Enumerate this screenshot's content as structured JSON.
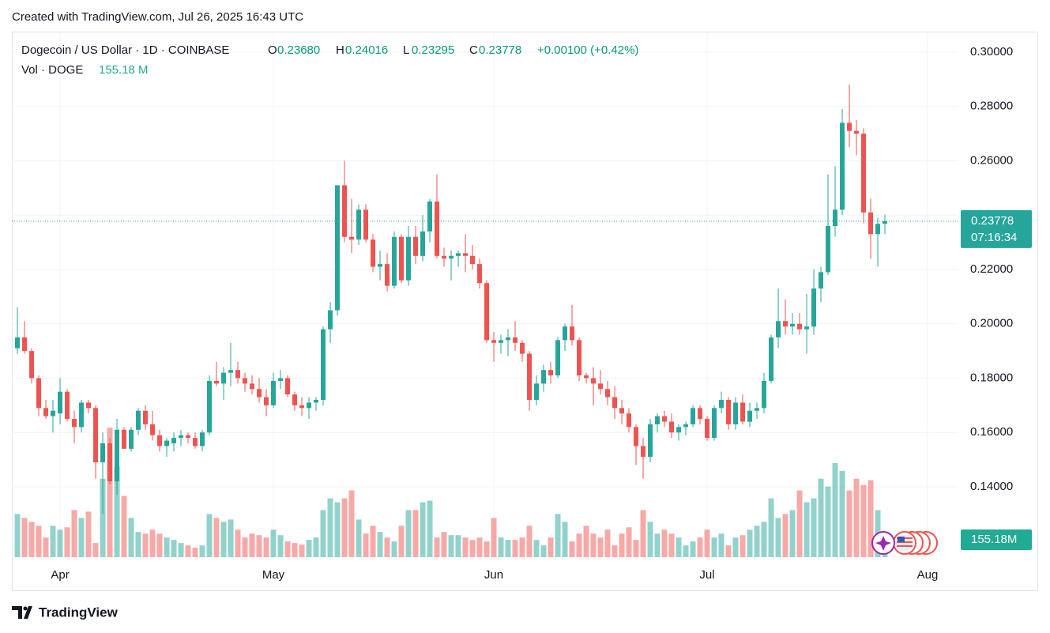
{
  "header": {
    "credit": "Created with TradingView.com, Jul 26, 2025 16:43 UTC"
  },
  "footer": {
    "brand": "TradingView"
  },
  "chart_data": {
    "type": "candlestick",
    "title": "Dogecoin / US Dollar · 1D · COINBASE",
    "ohlc_legend": [
      {
        "key": "O",
        "value": "0.23680"
      },
      {
        "key": "H",
        "value": "0.24016"
      },
      {
        "key": "L",
        "value": "0.23295"
      },
      {
        "key": "C",
        "value": "0.23778"
      }
    ],
    "change": "+0.00100 (+0.42%)",
    "volume_legend": {
      "name": "Vol · DOGE",
      "value": "155.18 M"
    },
    "price_tag": {
      "price": "0.23778",
      "countdown": "07:16:34"
    },
    "volume_tag": "155.18M",
    "up_color": "#26a69a",
    "down_color": "#ef5350",
    "grid": true,
    "xlim": [
      -0.78,
      132.33
    ],
    "xticks": [
      {
        "value": 6,
        "label": "Apr"
      },
      {
        "value": 36,
        "label": "May"
      },
      {
        "value": 67,
        "label": "Jun"
      },
      {
        "value": 97,
        "label": "Jul"
      },
      {
        "value": 128,
        "label": "Aug"
      }
    ],
    "ylim": [
      0.11411,
      0.30756
    ],
    "yticks": [
      {
        "value": 0.14,
        "label": "0.14000"
      },
      {
        "value": 0.16,
        "label": "0.16000"
      },
      {
        "value": 0.18,
        "label": "0.18000"
      },
      {
        "value": 0.2,
        "label": "0.20000"
      },
      {
        "value": 0.22,
        "label": "0.22000"
      },
      {
        "value": 0.24,
        "label": "0.24000"
      },
      {
        "value": 0.26,
        "label": "0.26000"
      },
      {
        "value": 0.28,
        "label": "0.28000"
      },
      {
        "value": 0.3,
        "label": "0.30000"
      }
    ],
    "open": [
      0.191,
      0.195,
      0.19,
      0.18,
      0.169,
      0.166,
      0.167,
      0.175,
      0.165,
      0.162,
      0.171,
      0.169,
      0.149,
      0.156,
      0.142,
      0.161,
      0.154,
      0.161,
      0.168,
      0.163,
      0.159,
      0.155,
      0.156,
      0.158,
      0.159,
      0.158,
      0.155,
      0.16,
      0.179,
      0.178,
      0.182,
      0.183,
      0.18,
      0.178,
      0.176,
      0.173,
      0.17,
      0.179,
      0.18,
      0.174,
      0.17,
      0.169,
      0.171,
      0.172,
      0.198,
      0.205,
      0.251,
      0.232,
      0.231,
      0.242,
      0.231,
      0.221,
      0.222,
      0.214,
      0.232,
      0.216,
      0.232,
      0.225,
      0.234,
      0.245,
      0.225,
      0.224,
      0.225,
      0.226,
      0.225,
      0.222,
      0.215,
      0.194,
      0.193,
      0.194,
      0.195,
      0.193,
      0.189,
      0.172,
      0.178,
      0.183,
      0.181,
      0.194,
      0.199,
      0.194,
      0.181,
      0.18,
      0.178,
      0.176,
      0.173,
      0.169,
      0.167,
      0.162,
      0.155,
      0.151,
      0.163,
      0.166,
      0.164,
      0.16,
      0.162,
      0.163,
      0.169,
      0.165,
      0.158,
      0.169,
      0.172,
      0.163,
      0.171,
      0.164,
      0.168,
      0.169,
      0.179,
      0.195,
      0.201,
      0.199,
      0.2,
      0.198,
      0.199,
      0.213,
      0.219,
      0.236,
      0.242,
      0.274,
      0.271,
      0.27,
      0.241,
      0.233,
      0.2368
    ],
    "high": [
      0.206,
      0.201,
      0.191,
      0.181,
      0.172,
      0.172,
      0.18,
      0.176,
      0.168,
      0.172,
      0.172,
      0.17,
      0.16,
      0.158,
      0.165,
      0.162,
      0.162,
      0.169,
      0.17,
      0.168,
      0.161,
      0.158,
      0.16,
      0.161,
      0.16,
      0.16,
      0.161,
      0.181,
      0.186,
      0.184,
      0.193,
      0.186,
      0.182,
      0.181,
      0.18,
      0.176,
      0.182,
      0.183,
      0.181,
      0.175,
      0.173,
      0.173,
      0.173,
      0.199,
      0.208,
      0.251,
      0.26,
      0.246,
      0.244,
      0.244,
      0.233,
      0.227,
      0.226,
      0.234,
      0.233,
      0.236,
      0.236,
      0.24,
      0.246,
      0.255,
      0.228,
      0.227,
      0.227,
      0.233,
      0.229,
      0.224,
      0.216,
      0.197,
      0.196,
      0.198,
      0.201,
      0.194,
      0.19,
      0.181,
      0.185,
      0.186,
      0.195,
      0.2,
      0.207,
      0.195,
      0.182,
      0.184,
      0.183,
      0.179,
      0.177,
      0.172,
      0.169,
      0.163,
      0.158,
      0.165,
      0.167,
      0.168,
      0.167,
      0.163,
      0.164,
      0.17,
      0.17,
      0.166,
      0.17,
      0.175,
      0.173,
      0.173,
      0.174,
      0.171,
      0.171,
      0.182,
      0.196,
      0.213,
      0.209,
      0.204,
      0.204,
      0.211,
      0.22,
      0.221,
      0.255,
      0.258,
      0.279,
      0.288,
      0.275,
      0.272,
      0.246,
      0.239,
      0.24016
    ],
    "low": [
      0.189,
      0.189,
      0.178,
      0.166,
      0.165,
      0.16,
      0.163,
      0.164,
      0.156,
      0.16,
      0.167,
      0.143,
      0.13,
      0.141,
      0.137,
      0.154,
      0.153,
      0.159,
      0.161,
      0.157,
      0.153,
      0.151,
      0.153,
      0.155,
      0.156,
      0.154,
      0.153,
      0.159,
      0.177,
      0.172,
      0.177,
      0.178,
      0.175,
      0.174,
      0.171,
      0.166,
      0.169,
      0.176,
      0.173,
      0.168,
      0.166,
      0.165,
      0.168,
      0.17,
      0.193,
      0.203,
      0.23,
      0.226,
      0.229,
      0.23,
      0.219,
      0.216,
      0.212,
      0.213,
      0.215,
      0.214,
      0.222,
      0.223,
      0.23,
      0.224,
      0.221,
      0.216,
      0.221,
      0.219,
      0.22,
      0.213,
      0.193,
      0.186,
      0.189,
      0.188,
      0.19,
      0.186,
      0.168,
      0.17,
      0.175,
      0.178,
      0.18,
      0.19,
      0.192,
      0.179,
      0.178,
      0.17,
      0.174,
      0.17,
      0.165,
      0.163,
      0.16,
      0.148,
      0.143,
      0.149,
      0.16,
      0.162,
      0.158,
      0.157,
      0.159,
      0.162,
      0.163,
      0.157,
      0.157,
      0.167,
      0.161,
      0.161,
      0.163,
      0.162,
      0.165,
      0.167,
      0.178,
      0.191,
      0.196,
      0.196,
      0.196,
      0.189,
      0.196,
      0.208,
      0.218,
      0.232,
      0.24,
      0.265,
      0.262,
      0.237,
      0.224,
      0.221,
      0.23295
    ],
    "close": [
      0.195,
      0.19,
      0.18,
      0.169,
      0.166,
      0.168,
      0.175,
      0.165,
      0.162,
      0.171,
      0.169,
      0.149,
      0.156,
      0.142,
      0.161,
      0.154,
      0.161,
      0.168,
      0.163,
      0.159,
      0.155,
      0.157,
      0.158,
      0.159,
      0.158,
      0.155,
      0.16,
      0.179,
      0.178,
      0.182,
      0.183,
      0.18,
      0.178,
      0.176,
      0.173,
      0.17,
      0.179,
      0.18,
      0.174,
      0.17,
      0.169,
      0.171,
      0.172,
      0.198,
      0.205,
      0.251,
      0.232,
      0.231,
      0.242,
      0.231,
      0.221,
      0.222,
      0.214,
      0.232,
      0.216,
      0.232,
      0.225,
      0.234,
      0.245,
      0.225,
      0.224,
      0.225,
      0.226,
      0.225,
      0.222,
      0.215,
      0.194,
      0.193,
      0.194,
      0.195,
      0.193,
      0.189,
      0.172,
      0.178,
      0.183,
      0.181,
      0.194,
      0.199,
      0.194,
      0.181,
      0.18,
      0.178,
      0.176,
      0.173,
      0.169,
      0.167,
      0.162,
      0.155,
      0.151,
      0.163,
      0.166,
      0.164,
      0.16,
      0.162,
      0.163,
      0.169,
      0.165,
      0.158,
      0.169,
      0.172,
      0.163,
      0.171,
      0.164,
      0.168,
      0.169,
      0.179,
      0.195,
      0.201,
      0.199,
      0.2,
      0.198,
      0.199,
      0.213,
      0.219,
      0.236,
      0.242,
      0.274,
      0.271,
      0.27,
      0.241,
      0.233,
      0.2368,
      0.23778
    ],
    "volume": [
      385,
      350,
      315,
      280,
      175,
      280,
      245,
      266,
      420,
      350,
      406,
      126,
      700,
      1155,
      805,
      546,
      350,
      224,
      210,
      245,
      210,
      175,
      154,
      126,
      105,
      84,
      105,
      385,
      350,
      315,
      336,
      245,
      175,
      210,
      196,
      175,
      245,
      196,
      140,
      126,
      112,
      154,
      175,
      420,
      525,
      490,
      525,
      595,
      336,
      210,
      280,
      224,
      175,
      140,
      280,
      420,
      420,
      490,
      504,
      175,
      224,
      196,
      196,
      175,
      154,
      175,
      140,
      350,
      175,
      154,
      154,
      175,
      280,
      154,
      105,
      175,
      385,
      315,
      140,
      210,
      280,
      210,
      175,
      245,
      105,
      210,
      266,
      154,
      420,
      315,
      210,
      245,
      210,
      175,
      105,
      140,
      175,
      245,
      175,
      210,
      105,
      175,
      196,
      245,
      280,
      315,
      525,
      350,
      385,
      420,
      595,
      490,
      525,
      700,
      630,
      840,
      770,
      595,
      700,
      644,
      686,
      420,
      155.18
    ]
  }
}
